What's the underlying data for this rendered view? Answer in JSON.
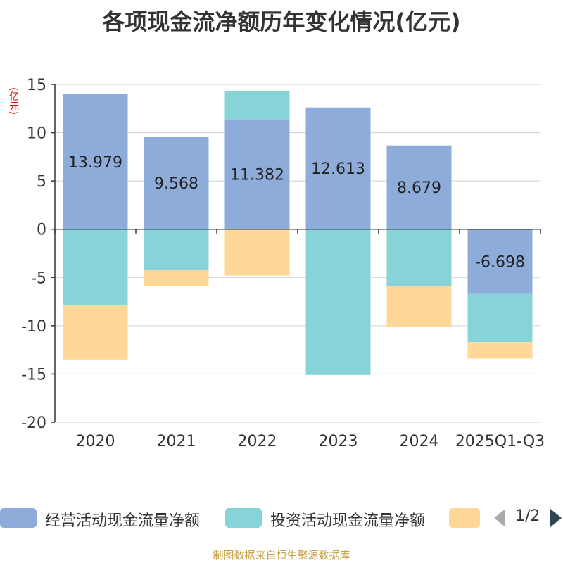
{
  "chart_data": {
    "type": "bar",
    "stacked": true,
    "title": "各项现金流净额历年变化情况(亿元)",
    "ylabel": "(亿元)",
    "xlabel": "",
    "ylim": [
      -20,
      15
    ],
    "yticks": [
      15,
      10,
      5,
      0,
      -5,
      -10,
      -15,
      -20
    ],
    "categories": [
      "2020",
      "2021",
      "2022",
      "2023",
      "2024",
      "2025Q1-Q3"
    ],
    "series": [
      {
        "name": "经营活动现金流量净额",
        "color": "#8eacd9",
        "values": [
          13.979,
          9.568,
          11.382,
          12.613,
          8.679,
          -6.698
        ]
      },
      {
        "name": "投资活动现金流量净额",
        "color": "#87d4d8",
        "values": [
          -7.9,
          -4.2,
          2.9,
          -15.1,
          -5.9,
          -5.0
        ]
      },
      {
        "name": "",
        "color": "#ffd899",
        "values": [
          -5.6,
          -1.7,
          -4.8,
          0,
          -4.2,
          -1.7
        ]
      }
    ],
    "data_labels": [
      "13.979",
      "9.568",
      "11.382",
      "12.613",
      "8.679",
      "-6.698"
    ],
    "legend_position": "bottom"
  },
  "legend": {
    "items": [
      {
        "label": "经营活动现金流量净额",
        "color": "#8eacd9"
      },
      {
        "label": "投资活动现金流量净额",
        "color": "#87d4d8"
      },
      {
        "label": "",
        "color": "#ffd899"
      }
    ],
    "page": "1/2"
  },
  "source": "制图数据来自恒生聚源数据库"
}
